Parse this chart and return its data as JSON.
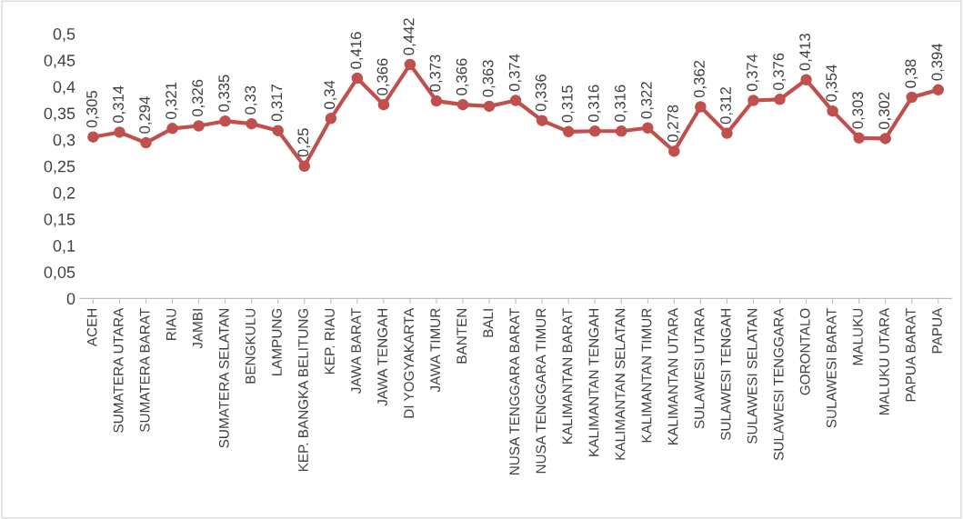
{
  "chart_data": {
    "type": "line",
    "categories": [
      "ACEH",
      "SUMATERA UTARA",
      "SUMATERA BARAT",
      "RIAU",
      "JAMBI",
      "SUMATERA SELATAN",
      "BENGKULU",
      "LAMPUNG",
      "KEP. BANGKA BELITUNG",
      "KEP. RIAU",
      "JAWA BARAT",
      "JAWA TENGAH",
      "DI YOGYAKARTA",
      "JAWA TIMUR",
      "BANTEN",
      "BALI",
      "NUSA TENGGARA BARAT",
      "NUSA TENGGARA TIMUR",
      "KALIMANTAN BARAT",
      "KALIMANTAN TENGAH",
      "KALIMANTAN SELATAN",
      "KALIMANTAN TIMUR",
      "KALIMANTAN UTARA",
      "SULAWESI UTARA",
      "SULAWESI TENGAH",
      "SULAWESI SELATAN",
      "SULAWESI TENGGARA",
      "GORONTALO",
      "SULAWESI BARAT",
      "MALUKU",
      "MALUKU UTARA",
      "PAPUA BARAT",
      "PAPUA"
    ],
    "values": [
      0.305,
      0.314,
      0.294,
      0.321,
      0.326,
      0.335,
      0.33,
      0.317,
      0.25,
      0.34,
      0.416,
      0.366,
      0.442,
      0.373,
      0.366,
      0.363,
      0.374,
      0.336,
      0.315,
      0.316,
      0.316,
      0.322,
      0.278,
      0.362,
      0.312,
      0.374,
      0.376,
      0.413,
      0.354,
      0.303,
      0.302,
      0.38,
      0.394
    ],
    "value_labels": [
      "0,305",
      "0,314",
      "0,294",
      "0,321",
      "0,326",
      "0,335",
      "0,33",
      "0,317",
      "0,25",
      "0,34",
      "0,416",
      "0,366",
      "0,442",
      "0,373",
      "0,366",
      "0,363",
      "0,374",
      "0,336",
      "0,315",
      "0,316",
      "0,316",
      "0,322",
      "0,278",
      "0,362",
      "0,312",
      "0,374",
      "0,376",
      "0,413",
      "0,354",
      "0,303",
      "0,302",
      "0,38",
      "0,394"
    ],
    "color": "#c0504d",
    "marker": "circle",
    "line_style": "solid",
    "grid": false,
    "legend": false,
    "ylim": [
      0,
      0.5
    ],
    "yticks": [
      0,
      {
        "value": 0.05,
        "label": "0,05"
      },
      {
        "value": 0.1,
        "label": "0,1"
      },
      {
        "value": 0.15,
        "label": "0,15"
      },
      {
        "value": 0.2,
        "label": "0,2"
      },
      {
        "value": 0.25,
        "label": "0,25"
      },
      {
        "value": 0.3,
        "label": "0,3"
      },
      {
        "value": 0.35,
        "label": "0,35"
      },
      {
        "value": 0.4,
        "label": "0,4"
      },
      {
        "value": 0.45,
        "label": "0,45"
      },
      {
        "value": 0.5,
        "label": "0,5"
      }
    ]
  }
}
